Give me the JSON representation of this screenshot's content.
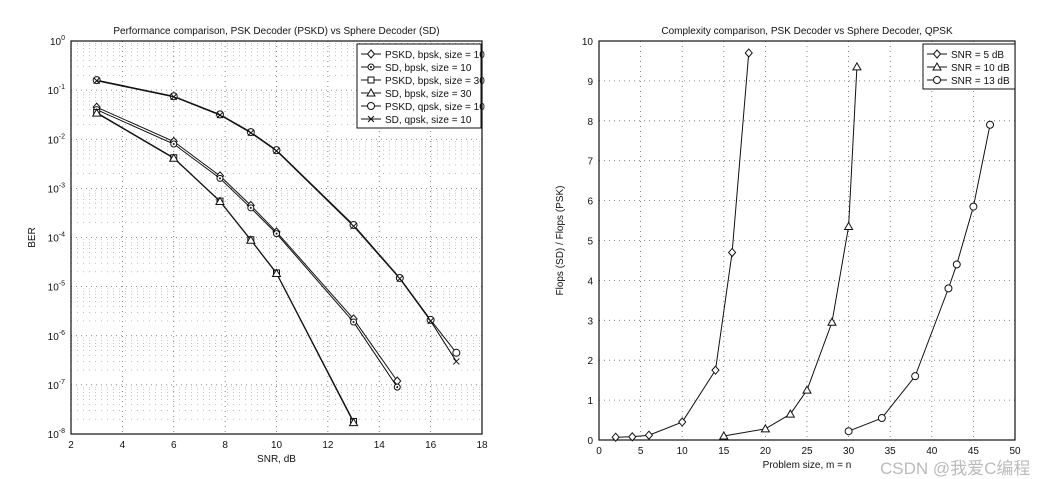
{
  "chart_data": [
    {
      "type": "line",
      "title": "Performance comparison, PSK Decoder (PSKD) vs Sphere Decoder (SD)",
      "xlabel": "SNR, dB",
      "ylabel": "BER",
      "xlim": [
        2,
        18
      ],
      "ylim": [
        1e-08,
        1
      ],
      "yscale": "log",
      "grid": true,
      "legend": "top-right",
      "xticks": [
        "2",
        "4",
        "6",
        "8",
        "10",
        "12",
        "14",
        "16",
        "18"
      ],
      "yticks": [
        "10^0",
        "10^-1",
        "10^-2",
        "10^-3",
        "10^-4",
        "10^-5",
        "10^-6",
        "10^-7",
        "10^-8"
      ],
      "series": [
        {
          "name": "PSKD, bpsk, size = 10",
          "marker": "diamond",
          "x": [
            3,
            6,
            7.8,
            9,
            10,
            13,
            14.7
          ],
          "y": [
            0.045,
            0.009,
            0.0018,
            0.00045,
            0.00013,
            2.2e-06,
            1.2e-07
          ]
        },
        {
          "name": "SD, bpsk, size = 10",
          "marker": "dot",
          "x": [
            3,
            6,
            7.8,
            9,
            10,
            13,
            14.7
          ],
          "y": [
            0.04,
            0.008,
            0.0016,
            0.0004,
            0.00012,
            1.9e-06,
            9e-08
          ]
        },
        {
          "name": "PSKD, bpsk, size = 30",
          "marker": "square",
          "x": [
            3,
            6,
            7.8,
            9,
            10,
            13
          ],
          "y": [
            0.035,
            0.0042,
            0.00055,
            9e-05,
            1.9e-05,
            1.8e-08
          ]
        },
        {
          "name": "SD, bpsk, size = 30",
          "marker": "triangle",
          "x": [
            3,
            6,
            7.8,
            9,
            10,
            13
          ],
          "y": [
            0.034,
            0.0041,
            0.00054,
            8.8e-05,
            1.85e-05,
            1.7e-08
          ]
        },
        {
          "name": "PSKD, qpsk, size = 10",
          "marker": "circle",
          "x": [
            3,
            6,
            7.8,
            9,
            10,
            13,
            14.8,
            16,
            17
          ],
          "y": [
            0.16,
            0.075,
            0.032,
            0.014,
            0.006,
            0.00018,
            1.5e-05,
            2.1e-06,
            4.5e-07
          ]
        },
        {
          "name": "SD, qpsk, size = 10",
          "marker": "x",
          "x": [
            3,
            6,
            7.8,
            9,
            10,
            13,
            14.8,
            16,
            17
          ],
          "y": [
            0.155,
            0.073,
            0.031,
            0.0135,
            0.0058,
            0.00017,
            1.45e-05,
            2e-06,
            3e-07
          ]
        }
      ]
    },
    {
      "type": "line",
      "title": "Complexity comparison, PSK Decoder vs Sphere Decoder, QPSK",
      "xlabel": "Problem size, m = n",
      "ylabel": "Flops (SD) / Flops (PSK)",
      "xlim": [
        0,
        50
      ],
      "ylim": [
        0,
        10
      ],
      "grid": true,
      "legend": "top-right",
      "xticks": [
        "0",
        "5",
        "10",
        "15",
        "20",
        "25",
        "30",
        "35",
        "40",
        "45",
        "50"
      ],
      "yticks": [
        "0",
        "1",
        "2",
        "3",
        "4",
        "5",
        "6",
        "7",
        "8",
        "9",
        "10"
      ],
      "series": [
        {
          "name": "SNR = 5 dB",
          "marker": "diamond",
          "x": [
            2,
            4,
            6,
            10,
            14,
            16,
            18
          ],
          "y": [
            0.07,
            0.08,
            0.12,
            0.45,
            1.75,
            4.7,
            9.7
          ]
        },
        {
          "name": "SNR = 10 dB",
          "marker": "triangle",
          "x": [
            15,
            20,
            23,
            25,
            28,
            30,
            31
          ],
          "y": [
            0.1,
            0.28,
            0.65,
            1.25,
            2.95,
            5.35,
            9.35
          ]
        },
        {
          "name": "SNR = 13 dB",
          "marker": "circle",
          "x": [
            30,
            34,
            38,
            42,
            43,
            45,
            47
          ],
          "y": [
            0.22,
            0.55,
            1.6,
            3.8,
            4.4,
            5.85,
            7.9
          ]
        }
      ]
    }
  ],
  "watermark": "CSDN @我爱C编程"
}
